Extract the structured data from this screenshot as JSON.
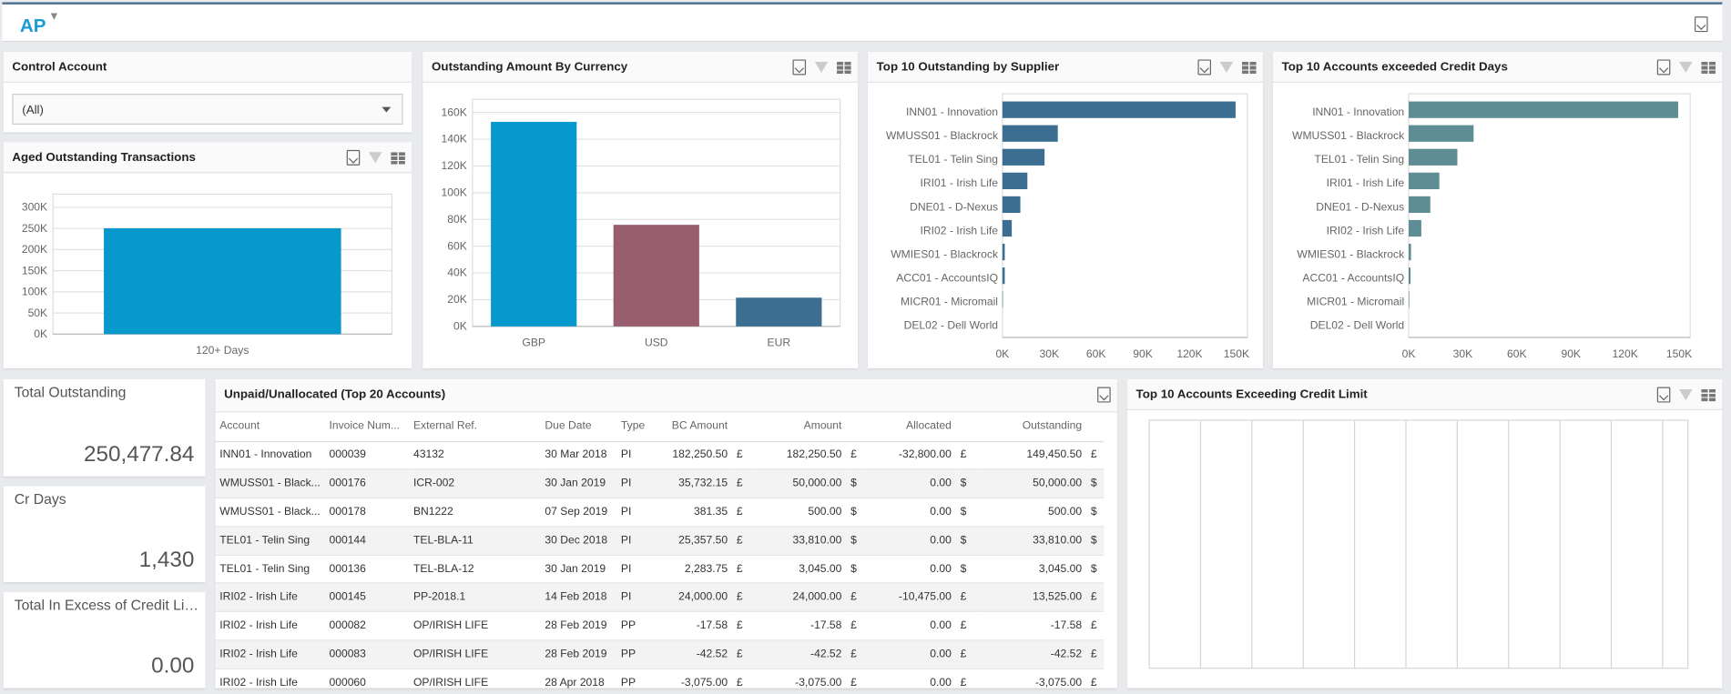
{
  "header": {
    "title": "AP",
    "filter_icon": "filter-icon",
    "export_icon": "export-icon"
  },
  "colors": {
    "accent": "#1a9bd7",
    "gbp": "#0899cc",
    "usd": "#985e6f",
    "eur": "#3c6e91",
    "supplier_bar": "#3c6e91",
    "credit_days_bar": "#5f8d94"
  },
  "control_account": {
    "title": "Control Account",
    "selected": "(All)"
  },
  "aged": {
    "title": "Aged Outstanding Transactions"
  },
  "currency": {
    "title": "Outstanding Amount By Currency"
  },
  "supplier": {
    "title": "Top 10 Outstanding by Supplier"
  },
  "credit_days": {
    "title": "Top 10 Accounts exceeded Credit Days"
  },
  "credit_limit": {
    "title": "Top 10 Accounts Exceeding Credit Limit"
  },
  "kpis": [
    {
      "label": "Total Outstanding",
      "value": "250,477.84"
    },
    {
      "label": "Cr Days",
      "value": "1,430"
    },
    {
      "label": "Total In Excess of Credit Lim...",
      "value": "0.00"
    }
  ],
  "table": {
    "title": "Unpaid/Unallocated (Top 20 Accounts)",
    "columns": [
      "Account",
      "Invoice Num...",
      "External Ref.",
      "Due Date",
      "Type",
      "BC Amount",
      "",
      "Amount",
      "",
      "Allocated",
      "",
      "Outstanding",
      ""
    ],
    "rows": [
      [
        "INN01 - Innovation",
        "000039",
        "43132",
        "30 Mar 2018",
        "PI",
        "182,250.50",
        "£",
        "182,250.50",
        "£",
        "-32,800.00",
        "£",
        "149,450.50",
        "£"
      ],
      [
        "WMUSS01 - Black...",
        "000176",
        "ICR-002",
        "30 Jan 2019",
        "PI",
        "35,732.15",
        "£",
        "50,000.00",
        "$",
        "0.00",
        "$",
        "50,000.00",
        "$"
      ],
      [
        "WMUSS01 - Black...",
        "000178",
        "BN1222",
        "07 Sep 2019",
        "PI",
        "381.35",
        "£",
        "500.00",
        "$",
        "0.00",
        "$",
        "500.00",
        "$"
      ],
      [
        "TEL01 - Telin Sing",
        "000144",
        "TEL-BLA-11",
        "30 Dec 2018",
        "PI",
        "25,357.50",
        "£",
        "33,810.00",
        "$",
        "0.00",
        "$",
        "33,810.00",
        "$"
      ],
      [
        "TEL01 - Telin Sing",
        "000136",
        "TEL-BLA-12",
        "30 Jan 2019",
        "PI",
        "2,283.75",
        "£",
        "3,045.00",
        "$",
        "0.00",
        "$",
        "3,045.00",
        "$"
      ],
      [
        "IRI02 - Irish Life",
        "000145",
        "PP-2018.1",
        "14 Feb 2018",
        "PI",
        "24,000.00",
        "£",
        "24,000.00",
        "£",
        "-10,475.00",
        "£",
        "13,525.00",
        "£"
      ],
      [
        "IRI02 - Irish Life",
        "000082",
        "OP/IRISH LIFE",
        "28 Feb 2019",
        "PP",
        "-17.58",
        "£",
        "-17.58",
        "£",
        "0.00",
        "£",
        "-17.58",
        "£"
      ],
      [
        "IRI02 - Irish Life",
        "000083",
        "OP/IRISH LIFE",
        "28 Feb 2019",
        "PP",
        "-42.52",
        "£",
        "-42.52",
        "£",
        "0.00",
        "£",
        "-42.52",
        "£"
      ],
      [
        "IRI02 - Irish Life",
        "000060",
        "OP/IRISH LIFE",
        "28 Apr 2018",
        "PP",
        "-3,075.00",
        "£",
        "-3,075.00",
        "£",
        "0.00",
        "£",
        "-3,075.00",
        "£"
      ]
    ]
  },
  "chart_data": [
    {
      "type": "bar",
      "categories": [
        "120+ Days"
      ],
      "values": [
        250477.84
      ],
      "ylim": [
        0,
        300000
      ],
      "yticks": [
        "0K",
        "50K",
        "100K",
        "150K",
        "200K",
        "250K",
        "300K"
      ],
      "grid": true
    },
    {
      "type": "bar",
      "categories": [
        "GBP",
        "USD",
        "EUR"
      ],
      "values": [
        153000,
        76000,
        21500
      ],
      "ylim": [
        0,
        160000
      ],
      "yticks": [
        "0K",
        "20K",
        "40K",
        "60K",
        "80K",
        "100K",
        "120K",
        "140K",
        "160K"
      ],
      "grid": true
    },
    {
      "type": "bar",
      "orientation": "horizontal",
      "categories": [
        "INN01 - Innovation",
        "WMUSS01 - Blackrock",
        "TEL01 - Telin Sing",
        "IRI01 - Irish Life",
        "DNE01 - D-Nexus",
        "IRI02 - Irish Life",
        "WMIES01 - Blackrock",
        "ACC01 - AccountsIQ",
        "MICR01 - Micromail",
        "DEL02 - Dell World"
      ],
      "values": [
        149450,
        35500,
        27000,
        16000,
        11500,
        6000,
        1500,
        1500,
        300,
        0
      ],
      "xlim": [
        0,
        150000
      ],
      "xticks": [
        "0K",
        "30K",
        "60K",
        "90K",
        "120K",
        "150K"
      ]
    },
    {
      "type": "bar",
      "orientation": "horizontal",
      "categories": [
        "INN01 - Innovation",
        "WMUSS01 - Blackrock",
        "TEL01 - Telin Sing",
        "IRI01 - Irish Life",
        "DNE01 - D-Nexus",
        "IRI02 - Irish Life",
        "WMIES01 - Blackrock",
        "ACC01 - AccountsIQ",
        "MICR01 - Micromail",
        "DEL02 - Dell World"
      ],
      "values": [
        149450,
        36000,
        27000,
        17000,
        12000,
        7000,
        1300,
        1000,
        300,
        0
      ],
      "xlim": [
        0,
        150000
      ],
      "xticks": [
        "0K",
        "30K",
        "60K",
        "90K",
        "120K",
        "150K"
      ]
    },
    {
      "type": "bar",
      "categories": [],
      "values": []
    }
  ]
}
